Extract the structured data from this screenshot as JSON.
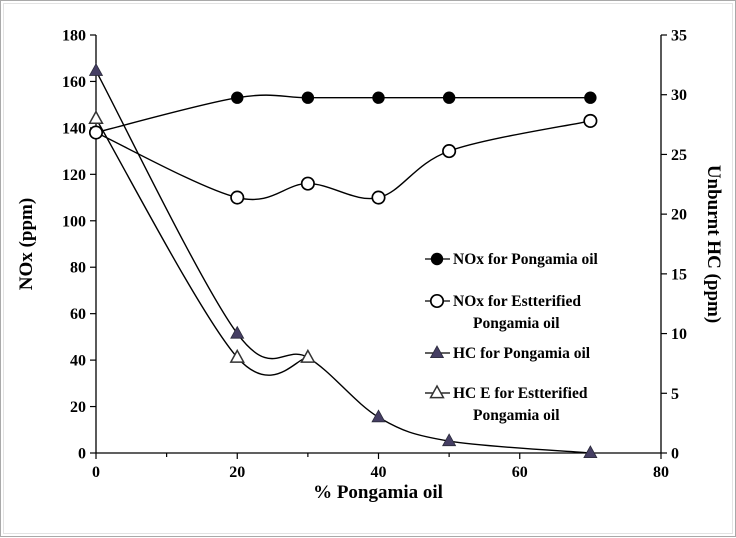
{
  "chart_data": {
    "type": "line",
    "title": "",
    "xlabel": "% Pongamia oil",
    "ylabel_left": "NOx (ppm)",
    "ylabel_right": "Unburnt HC (ppm)",
    "xlim": [
      0,
      80
    ],
    "x_major_ticks": [
      0,
      20,
      40,
      60,
      80
    ],
    "x_minor_ticks": [
      10,
      30,
      50,
      70
    ],
    "ylim_left": [
      0,
      180
    ],
    "yticks_left": [
      0,
      20,
      40,
      60,
      80,
      100,
      120,
      140,
      160,
      180
    ],
    "ylim_right": [
      0,
      35
    ],
    "yticks_right": [
      0,
      5,
      10,
      15,
      20,
      25,
      30,
      35
    ],
    "grid": "off",
    "legend_position": "inside-right",
    "colors": {
      "line": "#000000",
      "circle_fill": "#000000",
      "triangle_fill": "#453e63",
      "open_marker_fill": "#ffffff"
    },
    "series": [
      {
        "name": "NOx for Pongamia oil",
        "legend_lines": [
          "NOx for Pongamia oil"
        ],
        "axis": "left",
        "marker": "circle-filled",
        "x": [
          0,
          20,
          30,
          40,
          50,
          70
        ],
        "y": [
          138,
          153,
          153,
          153,
          153,
          153
        ]
      },
      {
        "name": "NOx for Estterified Pongamia oil",
        "legend_lines": [
          "NOx for Estterified",
          "Pongamia oil"
        ],
        "axis": "left",
        "marker": "circle-open",
        "x": [
          0,
          20,
          30,
          40,
          50,
          70
        ],
        "y": [
          138,
          110,
          116,
          110,
          130,
          143
        ]
      },
      {
        "name": "HC for Pongamia oil",
        "legend_lines": [
          "HC for Pongamia oil"
        ],
        "axis": "right",
        "marker": "triangle-filled",
        "x": [
          0,
          20,
          30,
          40,
          50,
          70
        ],
        "y": [
          32,
          10,
          8,
          3,
          1,
          0
        ]
      },
      {
        "name": "HC E for Estterified Pongamia oil",
        "legend_lines": [
          "HC E for Estterified",
          "Pongamia oil"
        ],
        "axis": "right",
        "marker": "triangle-open",
        "x": [
          0,
          20,
          30
        ],
        "y": [
          28,
          8,
          8
        ]
      }
    ]
  }
}
